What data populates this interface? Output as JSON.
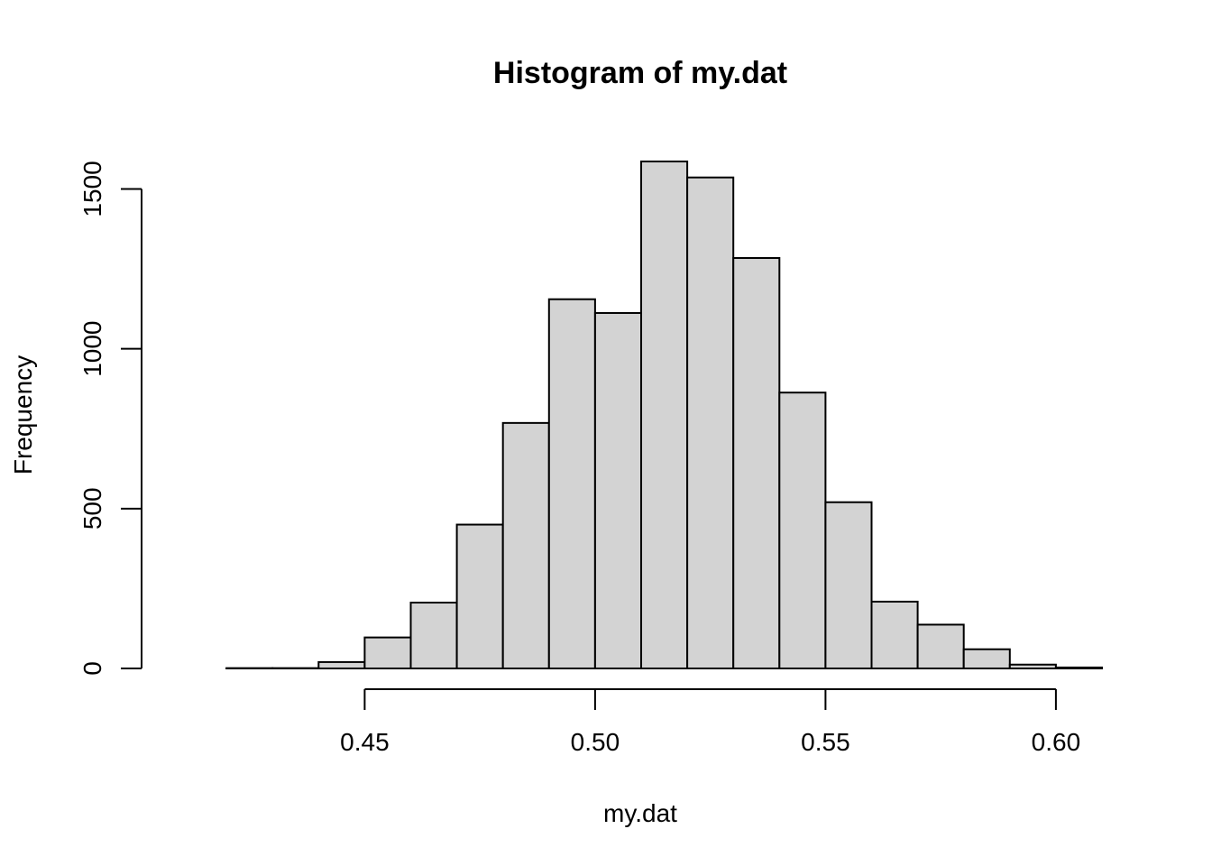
{
  "chart_data": {
    "type": "bar",
    "title": "Histogram of my.dat",
    "xlabel": "my.dat",
    "ylabel": "Frequency",
    "bar_color": "#d3d3d3",
    "bin_width": 0.01,
    "bins": [
      {
        "x0": 0.41,
        "x1": 0.42,
        "count": 0
      },
      {
        "x0": 0.42,
        "x1": 0.43,
        "count": 1
      },
      {
        "x0": 0.43,
        "x1": 0.44,
        "count": 1
      },
      {
        "x0": 0.44,
        "x1": 0.45,
        "count": 20
      },
      {
        "x0": 0.45,
        "x1": 0.46,
        "count": 97
      },
      {
        "x0": 0.46,
        "x1": 0.47,
        "count": 206
      },
      {
        "x0": 0.47,
        "x1": 0.48,
        "count": 450
      },
      {
        "x0": 0.48,
        "x1": 0.49,
        "count": 768
      },
      {
        "x0": 0.49,
        "x1": 0.5,
        "count": 1155
      },
      {
        "x0": 0.5,
        "x1": 0.51,
        "count": 1112
      },
      {
        "x0": 0.51,
        "x1": 0.52,
        "count": 1586
      },
      {
        "x0": 0.52,
        "x1": 0.53,
        "count": 1536
      },
      {
        "x0": 0.53,
        "x1": 0.54,
        "count": 1284
      },
      {
        "x0": 0.54,
        "x1": 0.55,
        "count": 863
      },
      {
        "x0": 0.55,
        "x1": 0.56,
        "count": 520
      },
      {
        "x0": 0.56,
        "x1": 0.57,
        "count": 209
      },
      {
        "x0": 0.57,
        "x1": 0.58,
        "count": 137
      },
      {
        "x0": 0.58,
        "x1": 0.59,
        "count": 60
      },
      {
        "x0": 0.59,
        "x1": 0.6,
        "count": 12
      },
      {
        "x0": 0.6,
        "x1": 0.61,
        "count": 3
      }
    ],
    "xlim": [
      0.41,
      0.61
    ],
    "ylim": [
      0,
      1586
    ],
    "x_ticks": [
      0.45,
      0.5,
      0.55,
      0.6
    ],
    "x_tick_labels": [
      "0.45",
      "0.50",
      "0.55",
      "0.60"
    ],
    "y_ticks": [
      0,
      500,
      1000,
      1500
    ],
    "y_tick_labels": [
      "0",
      "500",
      "1000",
      "1500"
    ],
    "grid": false,
    "legend": "none"
  }
}
